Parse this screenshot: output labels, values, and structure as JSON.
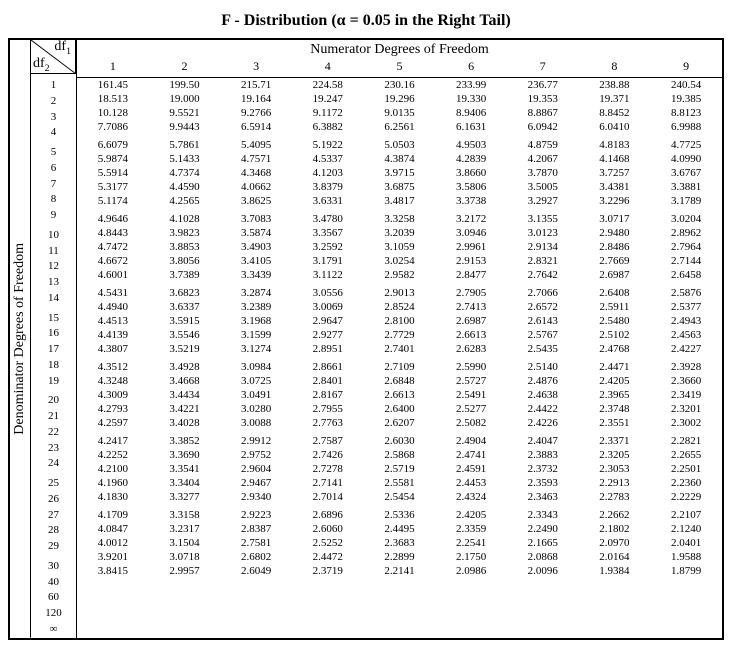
{
  "title_prefix": "F - Distribution (",
  "title_alpha": "α",
  "title_eq": " = 0.05  in the Right Tail)",
  "numerator_label": "Numerator Degrees of Freedom",
  "denominator_label": "Denominator Degrees of Freedom",
  "df1_label": "df",
  "df1_sub": "1",
  "df2_label": "df",
  "df2_sub": "2",
  "col_headers": [
    "1",
    "2",
    "3",
    "4",
    "5",
    "6",
    "7",
    "8",
    "9"
  ],
  "row_labels": [
    "1",
    "2",
    "3",
    "4",
    "5",
    "6",
    "7",
    "8",
    "9",
    "10",
    "11",
    "12",
    "13",
    "14",
    "15",
    "16",
    "17",
    "18",
    "19",
    "20",
    "21",
    "22",
    "23",
    "24",
    "25",
    "26",
    "27",
    "28",
    "29",
    "30",
    "40",
    "60",
    "120",
    "∞"
  ],
  "group_breaks": [
    4,
    9,
    14,
    19,
    24,
    29
  ],
  "rows": [
    [
      "161.45",
      "199.50",
      "215.71",
      "224.58",
      "230.16",
      "233.99",
      "236.77",
      "238.88",
      "240.54"
    ],
    [
      "18.513",
      "19.000",
      "19.164",
      "19.247",
      "19.296",
      "19.330",
      "19.353",
      "19.371",
      "19.385"
    ],
    [
      "10.128",
      "9.5521",
      "9.2766",
      "9.1172",
      "9.0135",
      "8.9406",
      "8.8867",
      "8.8452",
      "8.8123"
    ],
    [
      "7.7086",
      "9.9443",
      "6.5914",
      "6.3882",
      "6.2561",
      "6.1631",
      "6.0942",
      "6.0410",
      "6.9988"
    ],
    [
      "6.6079",
      "5.7861",
      "5.4095",
      "5.1922",
      "5.0503",
      "4.9503",
      "4.8759",
      "4.8183",
      "4.7725"
    ],
    [
      "5.9874",
      "5.1433",
      "4.7571",
      "4.5337",
      "4.3874",
      "4.2839",
      "4.2067",
      "4.1468",
      "4.0990"
    ],
    [
      "5.5914",
      "4.7374",
      "4.3468",
      "4.1203",
      "3.9715",
      "3.8660",
      "3.7870",
      "3.7257",
      "3.6767"
    ],
    [
      "5.3177",
      "4.4590",
      "4.0662",
      "3.8379",
      "3.6875",
      "3.5806",
      "3.5005",
      "3.4381",
      "3.3881"
    ],
    [
      "5.1174",
      "4.2565",
      "3.8625",
      "3.6331",
      "3.4817",
      "3.3738",
      "3.2927",
      "3.2296",
      "3.1789"
    ],
    [
      "4.9646",
      "4.1028",
      "3.7083",
      "3.4780",
      "3.3258",
      "3.2172",
      "3.1355",
      "3.0717",
      "3.0204"
    ],
    [
      "4.8443",
      "3.9823",
      "3.5874",
      "3.3567",
      "3.2039",
      "3.0946",
      "3.0123",
      "2.9480",
      "2.8962"
    ],
    [
      "4.7472",
      "3.8853",
      "3.4903",
      "3.2592",
      "3.1059",
      "2.9961",
      "2.9134",
      "2.8486",
      "2.7964"
    ],
    [
      "4.6672",
      "3.8056",
      "3.4105",
      "3.1791",
      "3.0254",
      "2.9153",
      "2.8321",
      "2.7669",
      "2.7144"
    ],
    [
      "4.6001",
      "3.7389",
      "3.3439",
      "3.1122",
      "2.9582",
      "2.8477",
      "2.7642",
      "2.6987",
      "2.6458"
    ],
    [
      "4.5431",
      "3.6823",
      "3.2874",
      "3.0556",
      "2.9013",
      "2.7905",
      "2.7066",
      "2.6408",
      "2.5876"
    ],
    [
      "4.4940",
      "3.6337",
      "3.2389",
      "3.0069",
      "2.8524",
      "2.7413",
      "2.6572",
      "2.5911",
      "2.5377"
    ],
    [
      "4.4513",
      "3.5915",
      "3.1968",
      "2.9647",
      "2.8100",
      "2.6987",
      "2.6143",
      "2.5480",
      "2.4943"
    ],
    [
      "4.4139",
      "3.5546",
      "3.1599",
      "2.9277",
      "2.7729",
      "2.6613",
      "2.5767",
      "2.5102",
      "2.4563"
    ],
    [
      "4.3807",
      "3.5219",
      "3.1274",
      "2.8951",
      "2.7401",
      "2.6283",
      "2.5435",
      "2.4768",
      "2.4227"
    ],
    [
      "4.3512",
      "3.4928",
      "3.0984",
      "2.8661",
      "2.7109",
      "2.5990",
      "2.5140",
      "2.4471",
      "2.3928"
    ],
    [
      "4.3248",
      "3.4668",
      "3.0725",
      "2.8401",
      "2.6848",
      "2.5727",
      "2.4876",
      "2.4205",
      "2.3660"
    ],
    [
      "4.3009",
      "3.4434",
      "3.0491",
      "2.8167",
      "2.6613",
      "2.5491",
      "2.4638",
      "2.3965",
      "2.3419"
    ],
    [
      "4.2793",
      "3.4221",
      "3.0280",
      "2.7955",
      "2.6400",
      "2.5277",
      "2.4422",
      "2.3748",
      "2.3201"
    ],
    [
      "4.2597",
      "3.4028",
      "3.0088",
      "2.7763",
      "2.6207",
      "2.5082",
      "2.4226",
      "2.3551",
      "2.3002"
    ],
    [
      "4.2417",
      "3.3852",
      "2.9912",
      "2.7587",
      "2.6030",
      "2.4904",
      "2.4047",
      "2.3371",
      "2.2821"
    ],
    [
      "4.2252",
      "3.3690",
      "2.9752",
      "2.7426",
      "2.5868",
      "2.4741",
      "2.3883",
      "2.3205",
      "2.2655"
    ],
    [
      "4.2100",
      "3.3541",
      "2.9604",
      "2.7278",
      "2.5719",
      "2.4591",
      "2.3732",
      "2.3053",
      "2.2501"
    ],
    [
      "4.1960",
      "3.3404",
      "2.9467",
      "2.7141",
      "2.5581",
      "2.4453",
      "2.3593",
      "2.2913",
      "2.2360"
    ],
    [
      "4.1830",
      "3.3277",
      "2.9340",
      "2.7014",
      "2.5454",
      "2.4324",
      "2.3463",
      "2.2783",
      "2.2229"
    ],
    [
      "4.1709",
      "3.3158",
      "2.9223",
      "2.6896",
      "2.5336",
      "2.4205",
      "2.3343",
      "2.2662",
      "2.2107"
    ],
    [
      "4.0847",
      "3.2317",
      "2.8387",
      "2.6060",
      "2.4495",
      "2.3359",
      "2.2490",
      "2.1802",
      "2.1240"
    ],
    [
      "4.0012",
      "3.1504",
      "2.7581",
      "2.5252",
      "2.3683",
      "2.2541",
      "2.1665",
      "2.0970",
      "2.0401"
    ],
    [
      "3.9201",
      "3.0718",
      "2.6802",
      "2.4472",
      "2.2899",
      "2.1750",
      "2.0868",
      "2.0164",
      "1.9588"
    ],
    [
      "3.8415",
      "2.9957",
      "2.6049",
      "2.3719",
      "2.2141",
      "2.0986",
      "2.0096",
      "1.9384",
      "1.8799"
    ]
  ],
  "colors": {
    "text": "#000000",
    "bg": "#ffffff",
    "border": "#000000"
  }
}
